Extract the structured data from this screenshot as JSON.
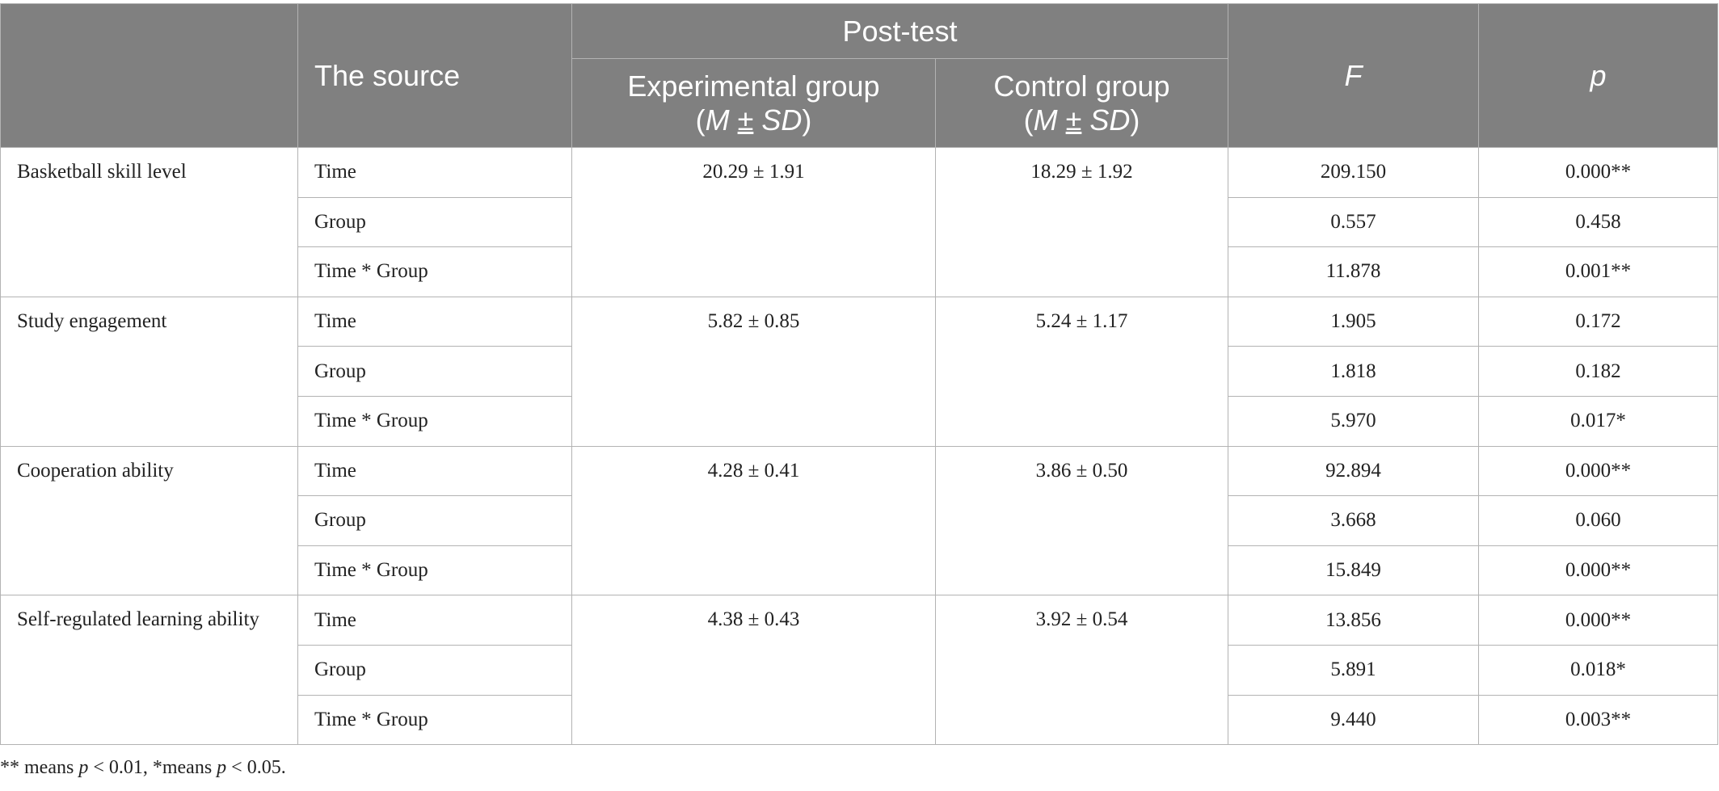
{
  "header": {
    "source_label": "The source",
    "posttest_label": "Post-test",
    "experimental": {
      "line1": "Experimental group",
      "line2_open": "(",
      "M": "M",
      "pm": "±",
      "SD": "SD",
      "line2_close": ")"
    },
    "control": {
      "line1": "Control group",
      "line2_open": "(",
      "M": "M",
      "pm": "±",
      "SD": "SD",
      "line2_close": ")"
    },
    "F_label": "F",
    "p_label": "p"
  },
  "rows": [
    {
      "measure": "Basketball skill level",
      "experimental": "20.29 ± 1.91",
      "control": "18.29 ± 1.92",
      "effects": [
        {
          "source": "Time",
          "F": "209.150",
          "p": "0.000**"
        },
        {
          "source": "Group",
          "F": "0.557",
          "p": "0.458"
        },
        {
          "source": "Time * Group",
          "F": "11.878",
          "p": "0.001**"
        }
      ]
    },
    {
      "measure": "Study engagement",
      "experimental": "5.82 ± 0.85",
      "control": "5.24 ± 1.17",
      "effects": [
        {
          "source": "Time",
          "F": "1.905",
          "p": "0.172"
        },
        {
          "source": "Group",
          "F": "1.818",
          "p": "0.182"
        },
        {
          "source": "Time * Group",
          "F": "5.970",
          "p": "0.017*"
        }
      ]
    },
    {
      "measure": "Cooperation ability",
      "experimental": "4.28 ± 0.41",
      "control": "3.86 ± 0.50",
      "effects": [
        {
          "source": "Time",
          "F": "92.894",
          "p": "0.000**"
        },
        {
          "source": "Group",
          "F": "3.668",
          "p": "0.060"
        },
        {
          "source": "Time * Group",
          "F": "15.849",
          "p": "0.000**"
        }
      ]
    },
    {
      "measure": "Self-regulated learning ability",
      "experimental": "4.38 ± 0.43",
      "control": "3.92 ± 0.54",
      "effects": [
        {
          "source": "Time",
          "F": "13.856",
          "p": "0.000**"
        },
        {
          "source": "Group",
          "F": "5.891",
          "p": "0.018*"
        },
        {
          "source": "Time * Group",
          "F": "9.440",
          "p": "0.003**"
        }
      ]
    }
  ],
  "footnote": {
    "part1": "** means ",
    "p1": "p",
    "part2": " < 0.01, *means ",
    "p2": "p",
    "part3": " < 0.05."
  }
}
